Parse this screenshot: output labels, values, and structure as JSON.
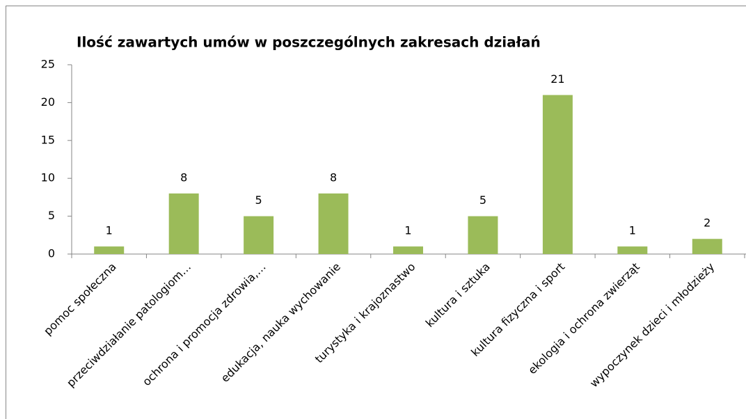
{
  "chart_data": {
    "type": "bar",
    "title": "Ilość zawartych umów  w poszczególnych zakresach działań",
    "categories": [
      "pomoc społeczna",
      "przeciwdziałanie patologiom…",
      "ochrona i promocja zdrowia,…",
      "edukacja, nauka wychowanie",
      "turystyka i krajoznastwo",
      "kultura i sztuka",
      "kultura fizyczna i sport",
      "ekologia i ochrona zwierząt",
      "wypoczynek dzieci i młodzieży"
    ],
    "values": [
      1,
      8,
      5,
      8,
      1,
      5,
      21,
      1,
      2
    ],
    "color": "#9bbb59",
    "ylim": [
      0,
      25
    ],
    "yticks": [
      0,
      5,
      10,
      15,
      20,
      25
    ],
    "grid": false
  }
}
